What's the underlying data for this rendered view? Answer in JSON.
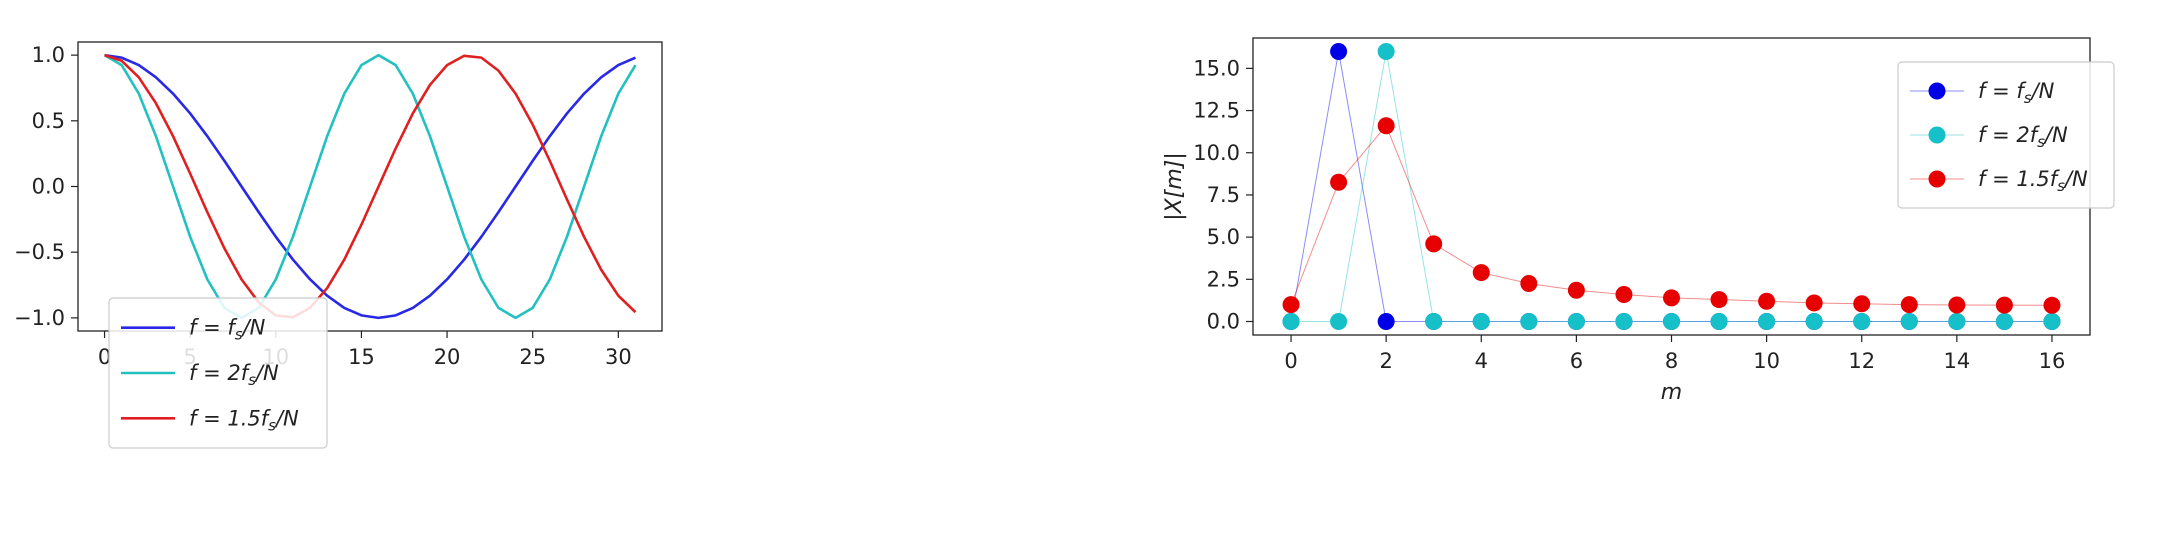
{
  "chart_data": [
    {
      "type": "line",
      "title": "",
      "xlabel": "",
      "ylabel": "",
      "xlim": [
        -1.55,
        32.55
      ],
      "ylim": [
        -1.1,
        1.1
      ],
      "xticks": [
        0,
        5,
        10,
        15,
        20,
        25,
        30
      ],
      "yticks": [
        -1.0,
        -0.5,
        0.0,
        0.5,
        1.0
      ],
      "xtick_labels": [
        "0",
        "5",
        "10",
        "15",
        "20",
        "25",
        "30"
      ],
      "ytick_labels": [
        "−1.0",
        "−0.5",
        "0.0",
        "0.5",
        "1.0"
      ],
      "grid": false,
      "legend_position": "lower-left",
      "x": [
        0,
        1,
        2,
        3,
        4,
        5,
        6,
        7,
        8,
        9,
        10,
        11,
        12,
        13,
        14,
        15,
        16,
        17,
        18,
        19,
        20,
        21,
        22,
        23,
        24,
        25,
        26,
        27,
        28,
        29,
        30,
        31
      ],
      "series": [
        {
          "name": "f = f_s/N",
          "legend": {
            "pre": "f = f",
            "sub": "s",
            "post": "/N"
          },
          "color": "#2828e6",
          "values": [
            1.0,
            0.981,
            0.924,
            0.831,
            0.707,
            0.556,
            0.383,
            0.195,
            0.0,
            -0.195,
            -0.383,
            -0.556,
            -0.707,
            -0.831,
            -0.924,
            -0.981,
            -1.0,
            -0.981,
            -0.924,
            -0.831,
            -0.707,
            -0.556,
            -0.383,
            -0.195,
            0.0,
            0.195,
            0.383,
            0.556,
            0.707,
            0.831,
            0.924,
            0.981
          ]
        },
        {
          "name": "f = 2f_s/N",
          "legend": {
            "pre": "f = 2f",
            "sub": "s",
            "post": "/N"
          },
          "color": "#22c0c0",
          "values": [
            1.0,
            0.924,
            0.707,
            0.383,
            0.0,
            -0.383,
            -0.707,
            -0.924,
            -1.0,
            -0.924,
            -0.707,
            -0.383,
            0.0,
            0.383,
            0.707,
            0.924,
            1.0,
            0.924,
            0.707,
            0.383,
            0.0,
            -0.383,
            -0.707,
            -0.924,
            -1.0,
            -0.924,
            -0.707,
            -0.383,
            0.0,
            0.383,
            0.707,
            0.924
          ]
        },
        {
          "name": "f = 1.5f_s/N",
          "legend": {
            "pre": "f = 1.5f",
            "sub": "s",
            "post": "/N"
          },
          "color": "#e02020",
          "values": [
            1.0,
            0.957,
            0.831,
            0.634,
            0.383,
            0.098,
            -0.195,
            -0.471,
            -0.707,
            -0.882,
            -0.981,
            -0.995,
            -0.924,
            -0.773,
            -0.556,
            -0.29,
            0.0,
            0.29,
            0.556,
            0.773,
            0.924,
            0.995,
            0.981,
            0.882,
            0.707,
            0.471,
            0.195,
            -0.098,
            -0.383,
            -0.634,
            -0.831,
            -0.957
          ]
        }
      ]
    },
    {
      "type": "line",
      "markers": true,
      "title": "",
      "xlabel": "m",
      "ylabel": "|X[m]|",
      "xlim": [
        -0.8,
        16.8
      ],
      "ylim": [
        -0.8,
        16.8
      ],
      "xticks": [
        0,
        2,
        4,
        6,
        8,
        10,
        12,
        14,
        16
      ],
      "yticks": [
        0,
        2.5,
        5,
        7.5,
        10,
        12.5,
        15
      ],
      "xtick_labels": [
        "0",
        "2",
        "4",
        "6",
        "8",
        "10",
        "12",
        "14",
        "16"
      ],
      "ytick_labels": [
        "0.0",
        "2.5",
        "5.0",
        "7.5",
        "10.0",
        "12.5",
        "15.0"
      ],
      "grid": false,
      "legend_position": "top-right",
      "x": [
        0,
        1,
        2,
        3,
        4,
        5,
        6,
        7,
        8,
        9,
        10,
        11,
        12,
        13,
        14,
        15,
        16
      ],
      "series": [
        {
          "name": "f = f_s/N",
          "legend": {
            "pre": "f = f",
            "sub": "s",
            "post": "/N"
          },
          "color": "#0000e6",
          "values": [
            0,
            16,
            0,
            0,
            0,
            0,
            0,
            0,
            0,
            0,
            0,
            0,
            0,
            0,
            0,
            0,
            0
          ]
        },
        {
          "name": "f = 2f_s/N",
          "legend": {
            "pre": "f = 2f",
            "sub": "s",
            "post": "/N"
          },
          "color": "#16c0c8",
          "values": [
            0,
            0,
            16,
            0,
            0,
            0,
            0,
            0,
            0,
            0,
            0,
            0,
            0,
            0,
            0,
            0,
            0
          ]
        },
        {
          "name": "f = 1.5f_s/N",
          "legend": {
            "pre": "f = 1.5f",
            "sub": "s",
            "post": "/N"
          },
          "color": "#e60000",
          "values": [
            1.0,
            8.25,
            11.6,
            4.6,
            2.9,
            2.25,
            1.85,
            1.6,
            1.4,
            1.3,
            1.2,
            1.1,
            1.05,
            1.0,
            0.98,
            0.97,
            0.96
          ]
        }
      ]
    }
  ]
}
